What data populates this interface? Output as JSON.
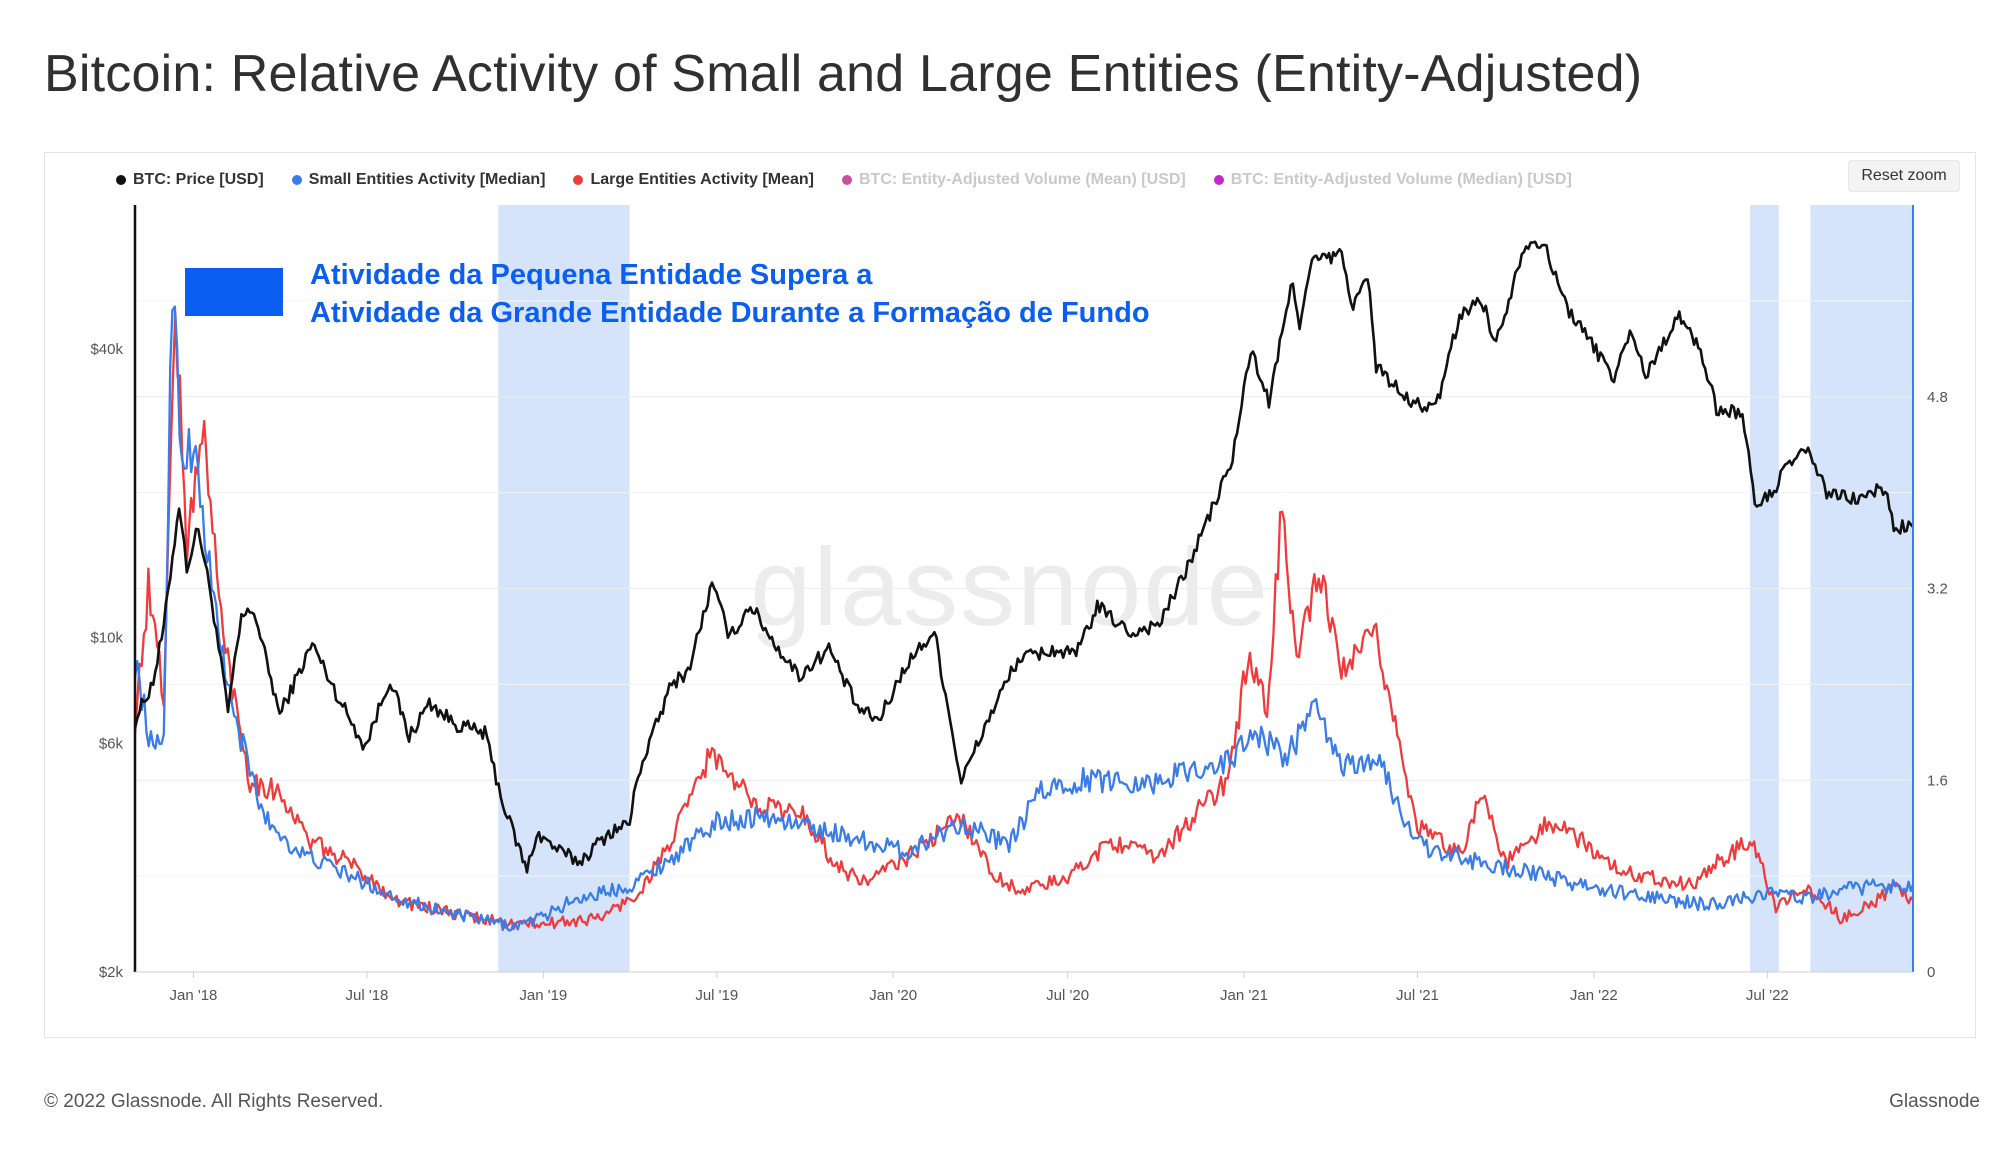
{
  "page": {
    "title": "Bitcoin: Relative Activity of Small and Large Entities (Entity-Adjusted)",
    "reset_zoom": "Reset zoom",
    "footer_copyright": "© 2022 Glassnode. All Rights Reserved.",
    "footer_brand": "Glassnode",
    "watermark": "glassnode"
  },
  "legend": [
    {
      "label": "BTC: Price [USD]",
      "color": "#111111",
      "visible": true
    },
    {
      "label": "Small Entities Activity [Median]",
      "color": "#3a7de8",
      "visible": true
    },
    {
      "label": "Large Entities Activity [Mean]",
      "color": "#ef3b3b",
      "visible": true
    },
    {
      "label": "BTC: Entity-Adjusted Volume (Mean) [USD]",
      "color": "#c8509b",
      "visible": false
    },
    {
      "label": "BTC: Entity-Adjusted Volume (Median) [USD]",
      "color": "#c22ac8",
      "visible": false
    }
  ],
  "annotation": {
    "line1": "Atividade da Pequena Entidade Supera a",
    "line2": "Atividade da Grande Entidade Durante a Formação de Fundo",
    "color": "#0a5ef0"
  },
  "chart_data": {
    "type": "line",
    "x_axis": {
      "start": "2017-11-01",
      "end": "2022-11-30",
      "tick_labels": [
        "Jan '18",
        "Jul '18",
        "Jan '19",
        "Jul '19",
        "Jan '20",
        "Jul '20",
        "Jan '21",
        "Jul '21",
        "Jan '22",
        "Jul '22"
      ],
      "tick_dates": [
        "2018-01-01",
        "2018-07-01",
        "2019-01-01",
        "2019-07-01",
        "2020-01-01",
        "2020-07-01",
        "2021-01-01",
        "2021-07-01",
        "2022-01-01",
        "2022-07-01"
      ]
    },
    "y_axis_left": {
      "scale": "log",
      "ylim": [
        2000,
        80000
      ],
      "tick_labels": [
        "$2k",
        "$6k",
        "$10k",
        "$40k"
      ],
      "tick_values": [
        2000,
        6000,
        10000,
        40000
      ]
    },
    "y_axis_right": {
      "scale": "linear",
      "ylim": [
        0,
        6.4
      ],
      "tick_labels": [
        "0",
        "1.6",
        "3.2",
        "4.8"
      ],
      "tick_values": [
        0,
        1.6,
        3.2,
        4.8
      ]
    },
    "highlight_ranges": [
      {
        "start": "2018-11-15",
        "end": "2019-04-01",
        "color": "#d6e4fb"
      },
      {
        "start": "2022-06-13",
        "end": "2022-07-13",
        "color": "#d6e4fb"
      },
      {
        "start": "2022-08-15",
        "end": "2022-11-30",
        "color": "#d6e4fb"
      }
    ],
    "series": [
      {
        "name": "BTC: Price [USD]",
        "axis": "left",
        "color": "#111111",
        "points": [
          [
            "2017-11-01",
            6700
          ],
          [
            "2017-11-20",
            8100
          ],
          [
            "2017-12-01",
            10500
          ],
          [
            "2017-12-17",
            19000
          ],
          [
            "2017-12-25",
            14000
          ],
          [
            "2018-01-06",
            17000
          ],
          [
            "2018-01-20",
            12000
          ],
          [
            "2018-02-06",
            7000
          ],
          [
            "2018-02-20",
            11000
          ],
          [
            "2018-03-05",
            11400
          ],
          [
            "2018-04-01",
            6900
          ],
          [
            "2018-05-05",
            9700
          ],
          [
            "2018-06-01",
            7500
          ],
          [
            "2018-06-29",
            5900
          ],
          [
            "2018-07-25",
            8200
          ],
          [
            "2018-08-14",
            6200
          ],
          [
            "2018-09-04",
            7300
          ],
          [
            "2018-10-01",
            6600
          ],
          [
            "2018-11-01",
            6300
          ],
          [
            "2018-11-20",
            4500
          ],
          [
            "2018-12-15",
            3250
          ],
          [
            "2018-12-25",
            3900
          ],
          [
            "2019-01-20",
            3550
          ],
          [
            "2019-02-08",
            3400
          ],
          [
            "2019-03-10",
            3900
          ],
          [
            "2019-04-01",
            4100
          ],
          [
            "2019-04-10",
            5200
          ],
          [
            "2019-05-15",
            8000
          ],
          [
            "2019-06-01",
            8500
          ],
          [
            "2019-06-26",
            12900
          ],
          [
            "2019-07-15",
            10000
          ],
          [
            "2019-08-05",
            11700
          ],
          [
            "2019-09-01",
            9600
          ],
          [
            "2019-09-25",
            8300
          ],
          [
            "2019-10-26",
            9500
          ],
          [
            "2019-11-25",
            7100
          ],
          [
            "2019-12-17",
            6700
          ],
          [
            "2020-01-15",
            8800
          ],
          [
            "2020-02-13",
            10300
          ],
          [
            "2020-03-12",
            5000
          ],
          [
            "2020-04-10",
            6800
          ],
          [
            "2020-05-10",
            9000
          ],
          [
            "2020-06-15",
            9400
          ],
          [
            "2020-07-10",
            9200
          ],
          [
            "2020-08-01",
            11600
          ],
          [
            "2020-09-05",
            10200
          ],
          [
            "2020-10-05",
            10700
          ],
          [
            "2020-11-01",
            13700
          ],
          [
            "2020-12-01",
            19000
          ],
          [
            "2020-12-20",
            23500
          ],
          [
            "2021-01-08",
            40000
          ],
          [
            "2021-01-27",
            31000
          ],
          [
            "2021-02-21",
            56000
          ],
          [
            "2021-02-28",
            45000
          ],
          [
            "2021-03-13",
            61000
          ],
          [
            "2021-04-13",
            63000
          ],
          [
            "2021-04-25",
            49000
          ],
          [
            "2021-05-10",
            57000
          ],
          [
            "2021-05-19",
            37000
          ],
          [
            "2021-06-22",
            31000
          ],
          [
            "2021-07-20",
            30000
          ],
          [
            "2021-08-14",
            47000
          ],
          [
            "2021-09-06",
            51000
          ],
          [
            "2021-09-21",
            41000
          ],
          [
            "2021-10-20",
            66000
          ],
          [
            "2021-11-08",
            67500
          ],
          [
            "2021-12-04",
            49000
          ],
          [
            "2022-01-22",
            35000
          ],
          [
            "2022-02-10",
            44000
          ],
          [
            "2022-02-24",
            35000
          ],
          [
            "2022-03-29",
            47000
          ],
          [
            "2022-04-20",
            41000
          ],
          [
            "2022-05-09",
            30000
          ],
          [
            "2022-06-05",
            29500
          ],
          [
            "2022-06-18",
            19000
          ],
          [
            "2022-07-01",
            19500
          ],
          [
            "2022-07-29",
            23800
          ],
          [
            "2022-08-15",
            24200
          ],
          [
            "2022-09-01",
            20000
          ],
          [
            "2022-10-01",
            19400
          ],
          [
            "2022-11-01",
            20500
          ],
          [
            "2022-11-10",
            17000
          ],
          [
            "2022-11-30",
            17000
          ]
        ]
      },
      {
        "name": "Small Entities Activity [Median]",
        "axis": "right",
        "color": "#3a7de8",
        "points": [
          [
            "2017-11-01",
            2.6
          ],
          [
            "2017-11-20",
            1.8
          ],
          [
            "2017-12-01",
            2.0
          ],
          [
            "2017-12-10",
            5.8
          ],
          [
            "2017-12-20",
            4.3
          ],
          [
            "2018-01-01",
            4.4
          ],
          [
            "2018-01-20",
            3.2
          ],
          [
            "2018-02-10",
            2.2
          ],
          [
            "2018-03-15",
            1.3
          ],
          [
            "2018-04-20",
            1.0
          ],
          [
            "2018-06-01",
            0.85
          ],
          [
            "2018-08-01",
            0.62
          ],
          [
            "2018-10-01",
            0.48
          ],
          [
            "2018-12-01",
            0.38
          ],
          [
            "2019-01-01",
            0.46
          ],
          [
            "2019-02-01",
            0.6
          ],
          [
            "2019-04-01",
            0.72
          ],
          [
            "2019-05-15",
            0.95
          ],
          [
            "2019-07-01",
            1.25
          ],
          [
            "2019-08-15",
            1.3
          ],
          [
            "2019-10-01",
            1.22
          ],
          [
            "2019-12-01",
            1.1
          ],
          [
            "2020-01-15",
            1.0
          ],
          [
            "2020-03-12",
            1.25
          ],
          [
            "2020-05-01",
            1.05
          ],
          [
            "2020-06-01",
            1.5
          ],
          [
            "2020-07-15",
            1.6
          ],
          [
            "2020-08-15",
            1.6
          ],
          [
            "2020-10-01",
            1.58
          ],
          [
            "2020-11-01",
            1.68
          ],
          [
            "2020-12-15",
            1.75
          ],
          [
            "2021-01-10",
            2.0
          ],
          [
            "2021-02-15",
            1.8
          ],
          [
            "2021-03-15",
            2.2
          ],
          [
            "2021-04-15",
            1.7
          ],
          [
            "2021-05-20",
            1.8
          ],
          [
            "2021-06-15",
            1.3
          ],
          [
            "2021-07-15",
            1.0
          ],
          [
            "2021-09-01",
            0.92
          ],
          [
            "2021-11-01",
            0.82
          ],
          [
            "2022-01-01",
            0.7
          ],
          [
            "2022-03-01",
            0.62
          ],
          [
            "2022-05-01",
            0.56
          ],
          [
            "2022-07-01",
            0.66
          ],
          [
            "2022-08-15",
            0.62
          ],
          [
            "2022-10-01",
            0.7
          ],
          [
            "2022-11-30",
            0.73
          ]
        ]
      },
      {
        "name": "Large Entities Activity [Mean]",
        "axis": "right",
        "color": "#ef3b3b",
        "points": [
          [
            "2017-11-01",
            2.1
          ],
          [
            "2017-11-15",
            3.2
          ],
          [
            "2017-12-01",
            2.3
          ],
          [
            "2017-12-13",
            5.6
          ],
          [
            "2017-12-25",
            3.5
          ],
          [
            "2018-01-10",
            4.6
          ],
          [
            "2018-02-01",
            2.8
          ],
          [
            "2018-03-01",
            1.6
          ],
          [
            "2018-04-01",
            1.5
          ],
          [
            "2018-05-01",
            1.1
          ],
          [
            "2018-06-15",
            0.9
          ],
          [
            "2018-08-01",
            0.6
          ],
          [
            "2018-10-01",
            0.48
          ],
          [
            "2018-12-01",
            0.4
          ],
          [
            "2019-01-01",
            0.4
          ],
          [
            "2019-03-01",
            0.45
          ],
          [
            "2019-04-10",
            0.65
          ],
          [
            "2019-05-15",
            1.1
          ],
          [
            "2019-06-26",
            1.85
          ],
          [
            "2019-07-15",
            1.6
          ],
          [
            "2019-08-15",
            1.4
          ],
          [
            "2019-10-01",
            1.3
          ],
          [
            "2019-11-01",
            0.9
          ],
          [
            "2019-12-01",
            0.75
          ],
          [
            "2020-01-15",
            0.95
          ],
          [
            "2020-03-12",
            1.3
          ],
          [
            "2020-04-15",
            0.8
          ],
          [
            "2020-05-15",
            0.68
          ],
          [
            "2020-07-01",
            0.78
          ],
          [
            "2020-08-15",
            1.1
          ],
          [
            "2020-10-01",
            0.95
          ],
          [
            "2020-11-15",
            1.35
          ],
          [
            "2020-12-15",
            1.6
          ],
          [
            "2021-01-05",
            2.6
          ],
          [
            "2021-01-25",
            2.2
          ],
          [
            "2021-02-10",
            3.9
          ],
          [
            "2021-02-25",
            2.6
          ],
          [
            "2021-03-20",
            3.3
          ],
          [
            "2021-04-15",
            2.5
          ],
          [
            "2021-05-19",
            2.8
          ],
          [
            "2021-06-10",
            2.0
          ],
          [
            "2021-07-01",
            1.2
          ],
          [
            "2021-08-15",
            1.0
          ],
          [
            "2021-09-07",
            1.5
          ],
          [
            "2021-10-01",
            0.9
          ],
          [
            "2021-11-15",
            1.25
          ],
          [
            "2021-12-20",
            1.1
          ],
          [
            "2022-01-25",
            0.85
          ],
          [
            "2022-03-01",
            0.8
          ],
          [
            "2022-04-15",
            0.72
          ],
          [
            "2022-05-10",
            0.92
          ],
          [
            "2022-06-15",
            1.1
          ],
          [
            "2022-07-10",
            0.55
          ],
          [
            "2022-08-15",
            0.7
          ],
          [
            "2022-09-15",
            0.45
          ],
          [
            "2022-10-15",
            0.55
          ],
          [
            "2022-11-10",
            0.7
          ],
          [
            "2022-11-30",
            0.6
          ]
        ]
      }
    ]
  }
}
